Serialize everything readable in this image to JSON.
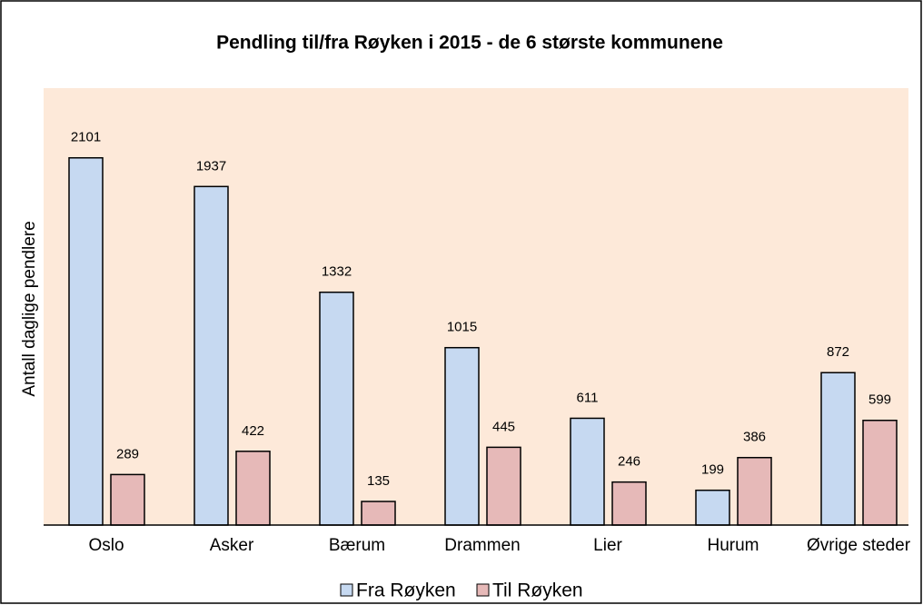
{
  "chart_data": {
    "type": "bar",
    "title": "Pendling til/fra Røyken i 2015 - de 6 største kommunene",
    "y_label": "Antall daglige pendlere",
    "categories": [
      "Oslo",
      "Asker",
      "Bærum",
      "Drammen",
      "Lier",
      "Hurum",
      "Øvrige steder"
    ],
    "series": [
      {
        "name": "Fra Røyken",
        "color": "#c6d9f1",
        "values": [
          2101,
          1937,
          1332,
          1015,
          611,
          199,
          872
        ]
      },
      {
        "name": "Til Røyken",
        "color": "#e6b9b8",
        "values": [
          289,
          422,
          135,
          445,
          246,
          386,
          599
        ]
      }
    ],
    "ylim": [
      0,
      2500
    ],
    "legend": "bottom",
    "background": "#fde9d9"
  }
}
